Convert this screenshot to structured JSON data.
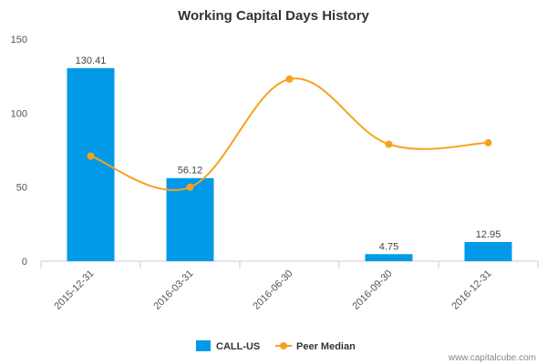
{
  "colors": {
    "bar": "#0399e9",
    "line": "#f6a21d",
    "axis": "#c0cfe0",
    "grid": "#d8d8d8"
  },
  "legend": {
    "series1_icon": "blue-square",
    "series2_icon": "orange-line-dot"
  },
  "watermark": "www.capitalcube.com",
  "chart_data": {
    "type": "bar",
    "title": "Working Capital Days History",
    "xlabel": "",
    "ylabel": "",
    "ylim": [
      0,
      150
    ],
    "yticks": [
      0,
      50,
      100,
      150
    ],
    "categories": [
      "2015-12-31",
      "2016-03-31",
      "2016-06-30",
      "2016-09-30",
      "2016-12-31"
    ],
    "series": [
      {
        "name": "CALL-US",
        "type": "bar",
        "values": [
          130.41,
          56.12,
          null,
          4.75,
          12.95
        ],
        "labels": [
          "130.41",
          "56.12",
          "",
          "4.75",
          "12.95"
        ]
      },
      {
        "name": "Peer Median",
        "type": "line",
        "values": [
          71,
          50,
          123,
          79,
          80
        ]
      }
    ],
    "legend_position": "bottom-center",
    "grid": false
  }
}
